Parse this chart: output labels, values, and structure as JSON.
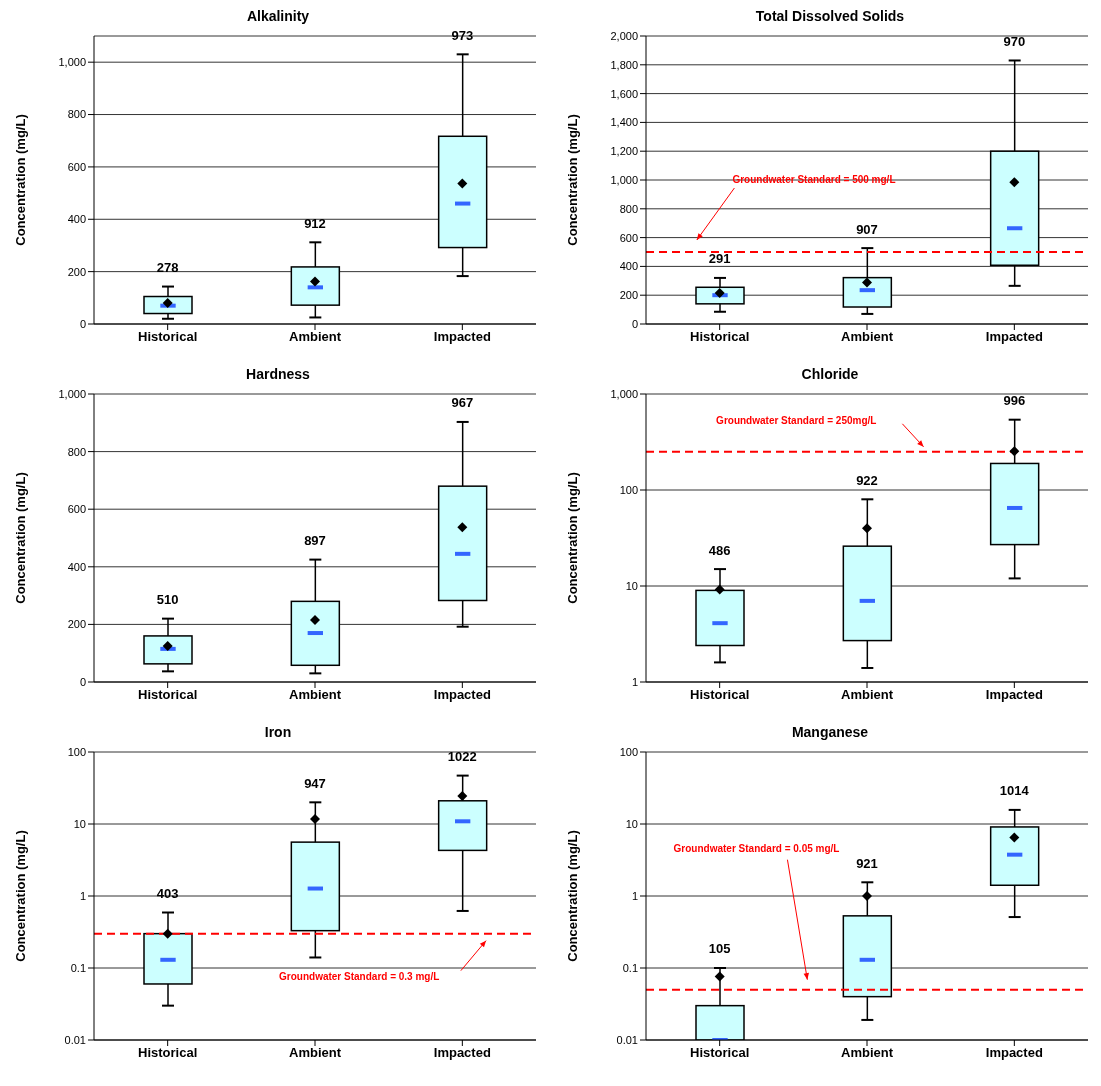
{
  "chart_data": [
    {
      "type": "box",
      "title": "Alkalinity",
      "ylabel": "Concentration (mg/L)",
      "categories": [
        "Historical",
        "Ambient",
        "Impacted"
      ],
      "color": "#ccffff",
      "ylim": [
        0,
        1100
      ],
      "yticks": [
        0,
        200,
        400,
        600,
        800,
        {
          "value": 1000,
          "label": "1,000"
        }
      ],
      "grid": "y",
      "boxes": [
        {
          "low": 20,
          "q1": 40,
          "median": 70,
          "q3": 105,
          "high": 143,
          "mean": 80
        },
        {
          "low": 25,
          "q1": 72,
          "median": 140,
          "q3": 218,
          "high": 312,
          "mean": 162
        },
        {
          "low": 183,
          "q1": 292,
          "median": 460,
          "q3": 717,
          "high": 1030,
          "mean": 537
        }
      ],
      "annotations": [
        "278",
        "912",
        "973"
      ]
    },
    {
      "type": "box",
      "title": "Total Dissolved Solids",
      "ylabel": "Concentration (mg/L)",
      "categories": [
        "Historical",
        "Ambient",
        "Impacted"
      ],
      "color": "#ccffff",
      "ylim": [
        0,
        2000
      ],
      "yticks": [
        0,
        200,
        400,
        600,
        800,
        {
          "value": 1000,
          "label": "1,000"
        },
        {
          "value": 1200,
          "label": "1,200"
        },
        {
          "value": 1400,
          "label": "1,400"
        },
        {
          "value": 1600,
          "label": "1,600"
        },
        {
          "value": 1800,
          "label": "1,800"
        },
        {
          "value": 2000,
          "label": "2,000"
        }
      ],
      "grid": "y",
      "boxes": [
        {
          "low": 85,
          "q1": 140,
          "median": 200,
          "q3": 255,
          "high": 320,
          "mean": 215
        },
        {
          "low": 70,
          "q1": 118,
          "median": 235,
          "q3": 322,
          "high": 527,
          "mean": 288
        },
        {
          "low": 265,
          "q1": 408,
          "median": 665,
          "q3": 1200,
          "high": 1830,
          "mean": 985
        }
      ],
      "ref_lines": [
        {
          "axis": "y",
          "value": 500,
          "label": "Groundwater Standard = 500 mg/L",
          "color": "#ff0000",
          "line_style": "dashed"
        }
      ],
      "annotations": [
        "291",
        "907",
        "970"
      ]
    },
    {
      "type": "box",
      "title": "Hardness",
      "ylabel": "Concentration (mg/L)",
      "categories": [
        "Historical",
        "Ambient",
        "Impacted"
      ],
      "color": "#ccffff",
      "ylim": [
        0,
        1000
      ],
      "yticks": [
        0,
        200,
        400,
        600,
        800,
        {
          "value": 1000,
          "label": "1,000"
        }
      ],
      "grid": "y",
      "boxes": [
        {
          "low": 37,
          "q1": 63,
          "median": 115,
          "q3": 160,
          "high": 220,
          "mean": 125
        },
        {
          "low": 30,
          "q1": 58,
          "median": 170,
          "q3": 280,
          "high": 425,
          "mean": 215
        },
        {
          "low": 192,
          "q1": 283,
          "median": 445,
          "q3": 680,
          "high": 903,
          "mean": 537
        }
      ],
      "annotations": [
        "510",
        "897",
        "967"
      ]
    },
    {
      "type": "box",
      "title": "Chloride",
      "ylabel": "Concentration (mg/L)",
      "categories": [
        "Historical",
        "Ambient",
        "Impacted"
      ],
      "color": "#ccffff",
      "log": true,
      "ylim": [
        1,
        1000
      ],
      "yticks": [
        1,
        10,
        100,
        {
          "value": 1000,
          "label": "1,000"
        }
      ],
      "grid": "y",
      "boxes": [
        {
          "low": 1.6,
          "q1": 2.4,
          "median": 4.1,
          "q3": 9,
          "high": 15,
          "mean": 9.2
        },
        {
          "low": 1.4,
          "q1": 2.7,
          "median": 7,
          "q3": 26,
          "high": 80,
          "mean": 40
        },
        {
          "low": 12,
          "q1": 27,
          "median": 65,
          "q3": 189,
          "high": 540,
          "mean": 254
        }
      ],
      "ref_lines": [
        {
          "axis": "y",
          "value": 250,
          "label": "Groundwater Standard = 250mg/L",
          "color": "#ff0000",
          "line_style": "dashed"
        }
      ],
      "annotations": [
        "486",
        "922",
        "996"
      ]
    },
    {
      "type": "box",
      "title": "Iron",
      "ylabel": "Concentration (mg/L)",
      "categories": [
        "Historical",
        "Ambient",
        "Impacted"
      ],
      "color": "#ccffff",
      "log": true,
      "ylim": [
        0.01,
        100
      ],
      "yticks": [
        0.01,
        0.1,
        1,
        10,
        100
      ],
      "grid": "y",
      "boxes": [
        {
          "low": 0.03,
          "q1": 0.06,
          "median": 0.13,
          "q3": 0.3,
          "high": 0.59,
          "mean": 0.3
        },
        {
          "low": 0.14,
          "q1": 0.33,
          "median": 1.27,
          "q3": 5.6,
          "high": 20,
          "mean": 11.7
        },
        {
          "low": 0.62,
          "q1": 4.3,
          "median": 10.9,
          "q3": 21,
          "high": 47,
          "mean": 24.5
        }
      ],
      "ref_lines": [
        {
          "axis": "y",
          "value": 0.3,
          "label": "Groundwater Standard = 0.3 mg/L",
          "color": "#ff0000",
          "line_style": "dashed"
        }
      ],
      "annotations": [
        "403",
        "947",
        "1022"
      ]
    },
    {
      "type": "box",
      "title": "Manganese",
      "ylabel": "Concentration (mg/L)",
      "categories": [
        "Historical",
        "Ambient",
        "Impacted"
      ],
      "color": "#ccffff",
      "log": true,
      "ylim": [
        0.01,
        100
      ],
      "yticks": [
        0.01,
        0.1,
        1,
        10,
        100
      ],
      "grid": "y",
      "boxes": [
        {
          "low": 0.01,
          "q1": 0.01,
          "median": 0.01,
          "q3": 0.03,
          "high": 0.1,
          "mean": 0.076
        },
        {
          "low": 0.019,
          "q1": 0.04,
          "median": 0.13,
          "q3": 0.53,
          "high": 1.55,
          "mean": 1
        },
        {
          "low": 0.51,
          "q1": 1.41,
          "median": 3.75,
          "q3": 9.1,
          "high": 15.7,
          "mean": 6.5
        }
      ],
      "ref_lines": [
        {
          "axis": "y",
          "value": 0.05,
          "label": "Groundwater Standard = 0.05 mg/L",
          "color": "#ff0000",
          "line_style": "dashed"
        }
      ],
      "annotations": [
        "105",
        "921",
        "1014"
      ]
    }
  ]
}
